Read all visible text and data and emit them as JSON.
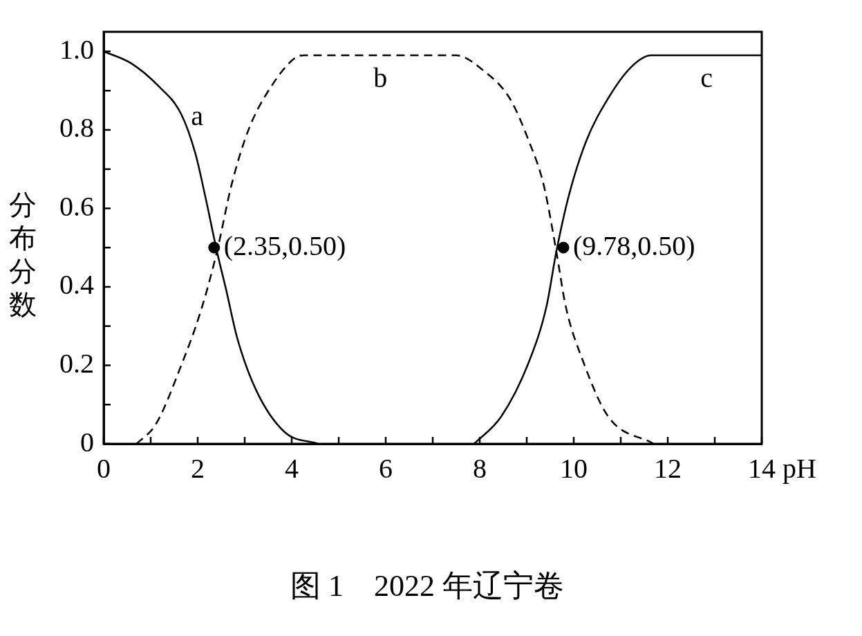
{
  "chart_data": {
    "type": "line",
    "title": "图 1　2022 年辽宁卷",
    "xlabel": "pH",
    "ylabel": "分布分数",
    "xlim": [
      0,
      14
    ],
    "xticks": [
      0,
      {
        "value": 1,
        "label": null
      },
      2,
      {
        "value": 3,
        "label": null
      },
      4,
      {
        "value": 5,
        "label": null
      },
      6,
      {
        "value": 7,
        "label": null
      },
      8,
      {
        "value": 9,
        "label": null
      },
      10,
      {
        "value": 11,
        "label": null
      },
      12,
      {
        "value": 13,
        "label": null
      },
      14
    ],
    "ylim": [
      0,
      1.05
    ],
    "yticks": [
      0,
      {
        "value": 0.1,
        "label": null
      },
      0.2,
      {
        "value": 0.3,
        "label": null
      },
      0.4,
      {
        "value": 0.5,
        "label": null
      },
      0.6,
      {
        "value": 0.7,
        "label": null
      },
      0.8,
      {
        "value": 0.9,
        "label": null
      },
      {
        "value": 1,
        "label": "1.0"
      }
    ],
    "grid": false,
    "legend": false,
    "marker": "none",
    "series": [
      {
        "name": "a",
        "color": "#000000",
        "line_style": "solid",
        "x": [
          0,
          0.58,
          1.18,
          1.65,
          1.95,
          2.18,
          2.41,
          2.61,
          2.84,
          3.25,
          3.85,
          4.56
        ],
        "values": [
          1.0,
          0.97,
          0.91,
          0.84,
          0.74,
          0.62,
          0.49,
          0.39,
          0.27,
          0.135,
          0.03,
          0
        ]
      },
      {
        "name": "b",
        "color": "#000000",
        "line_style": "dashed",
        "x": [
          0.7,
          1.11,
          1.65,
          2.07,
          2.41,
          2.72,
          3.08,
          3.56,
          4.09,
          4.27,
          7.5,
          8.09,
          8.64,
          9.05,
          9.36,
          9.63,
          9.83,
          10.2,
          10.73,
          11.7
        ],
        "values": [
          0,
          0.05,
          0.2,
          0.34,
          0.49,
          0.66,
          0.8,
          0.91,
          0.985,
          0.99,
          0.99,
          0.95,
          0.88,
          0.77,
          0.66,
          0.49,
          0.35,
          0.21,
          0.07,
          0
        ]
      },
      {
        "name": "c",
        "color": "#000000",
        "line_style": "solid",
        "x": [
          7.88,
          8.46,
          9.05,
          9.42,
          9.63,
          9.89,
          10.26,
          10.73,
          11.22,
          11.65,
          14
        ],
        "values": [
          0,
          0.07,
          0.21,
          0.35,
          0.49,
          0.63,
          0.77,
          0.88,
          0.96,
          0.99,
          0.99
        ]
      },
      {
        "type": "scatter",
        "color": "#000000",
        "marker": "circle",
        "x": [
          2.35,
          9.78
        ],
        "values": [
          0.5,
          0.5
        ]
      }
    ],
    "annotations": [
      {
        "text": "(2.35,0.50)",
        "x": 2.35,
        "y": 0.5
      },
      {
        "text": "(9.78,0.50)",
        "x": 9.78,
        "y": 0.5
      }
    ]
  }
}
